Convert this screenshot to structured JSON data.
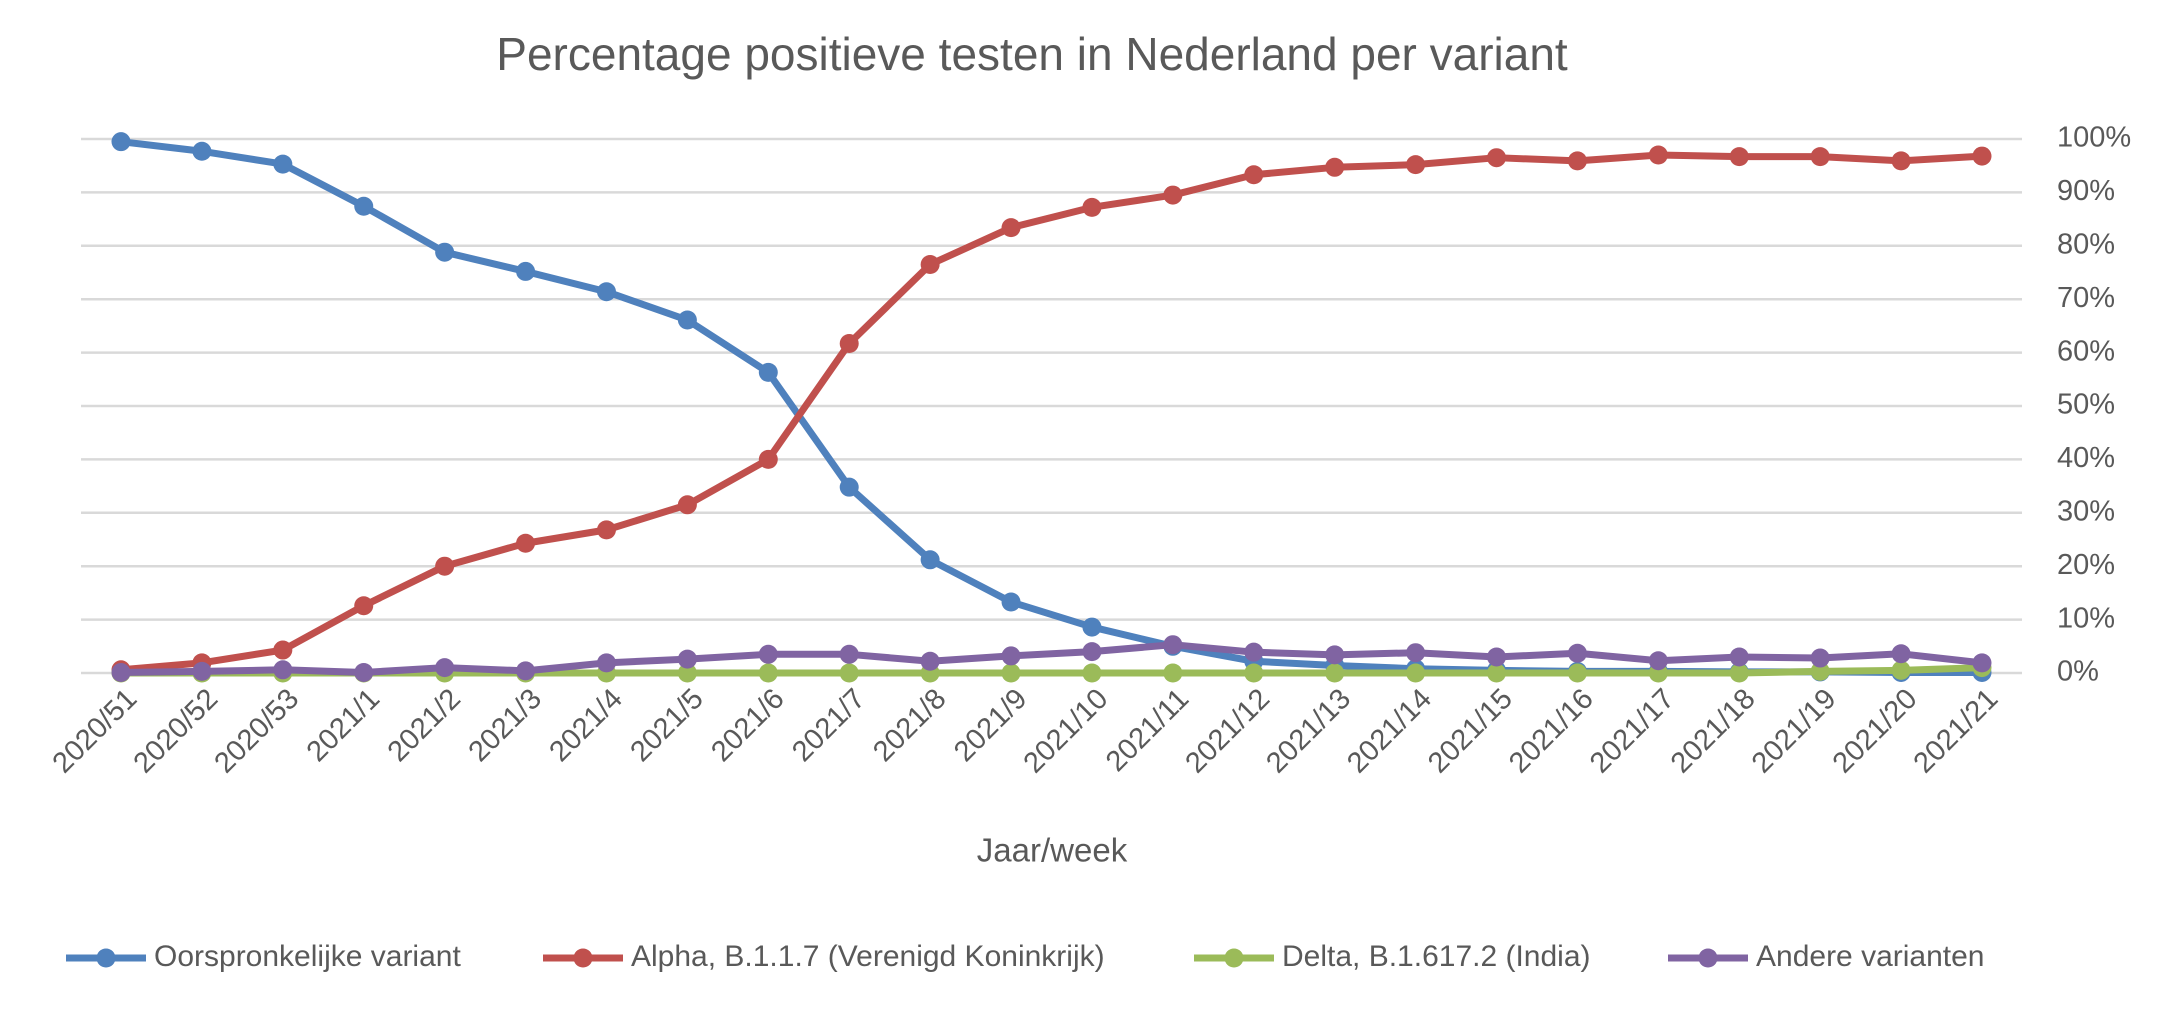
{
  "chart_data": {
    "type": "line",
    "title": "Percentage positieve testen in Nederland per variant",
    "x_label": "Jaar/week",
    "categories": [
      "2020/51",
      "2020/52",
      "2020/53",
      "2021/1",
      "2021/2",
      "2021/3",
      "2021/4",
      "2021/5",
      "2021/6",
      "2021/7",
      "2021/8",
      "2021/9",
      "2021/10",
      "2021/11",
      "2021/12",
      "2021/13",
      "2021/14",
      "2021/15",
      "2021/16",
      "2021/17",
      "2021/18",
      "2021/19",
      "2021/20",
      "2021/21"
    ],
    "series": [
      {
        "name": "Oorspronkelijke variant",
        "color": "#4f81bd",
        "values": [
          99.5,
          97.7,
          95.3,
          87.4,
          78.8,
          75.2,
          71.4,
          66.1,
          56.3,
          34.8,
          21.2,
          13.3,
          8.6,
          5.0,
          2.2,
          1.4,
          0.8,
          0.5,
          0.3,
          0.3,
          0.2,
          0.2,
          0.1,
          0.1
        ]
      },
      {
        "name": "Alpha, B.1.1.7 (Verenigd Koninkrijk)",
        "color": "#c0504d",
        "values": [
          0.6,
          1.9,
          4.3,
          12.6,
          20.0,
          24.3,
          26.8,
          31.5,
          40.0,
          61.7,
          76.5,
          83.4,
          87.2,
          89.5,
          93.3,
          94.7,
          95.2,
          96.5,
          95.9,
          97.0,
          96.7,
          96.7,
          95.9,
          96.8
        ]
      },
      {
        "name": "Delta, B.1.617.2 (India)",
        "color": "#9bbb59",
        "values": [
          0,
          0,
          0,
          0,
          0,
          0,
          0,
          0,
          0,
          0,
          0,
          0,
          0,
          0,
          0,
          0,
          0,
          0,
          0,
          0,
          0,
          0.3,
          0.5,
          1.0
        ]
      },
      {
        "name": "Andere varianten",
        "color": "#8064a2",
        "values": [
          0.1,
          0.3,
          0.6,
          0.1,
          1.0,
          0.4,
          1.9,
          2.6,
          3.5,
          3.5,
          2.2,
          3.2,
          4.0,
          5.3,
          3.9,
          3.4,
          3.8,
          3.0,
          3.7,
          2.3,
          3.0,
          2.8,
          3.6,
          1.9
        ]
      }
    ],
    "ylim": [
      0,
      100
    ],
    "yticks": [
      {
        "value": 0,
        "label": "0%"
      },
      {
        "value": 10,
        "label": "10%"
      },
      {
        "value": 20,
        "label": "20%"
      },
      {
        "value": 30,
        "label": "30%"
      },
      {
        "value": 40,
        "label": "40%"
      },
      {
        "value": 50,
        "label": "50%"
      },
      {
        "value": 60,
        "label": "60%"
      },
      {
        "value": 70,
        "label": "70%"
      },
      {
        "value": 80,
        "label": "80%"
      },
      {
        "value": 90,
        "label": "90%"
      },
      {
        "value": 100,
        "label": "100%"
      }
    ],
    "y_axis_side": "right",
    "grid": true,
    "legend": "bottom"
  }
}
